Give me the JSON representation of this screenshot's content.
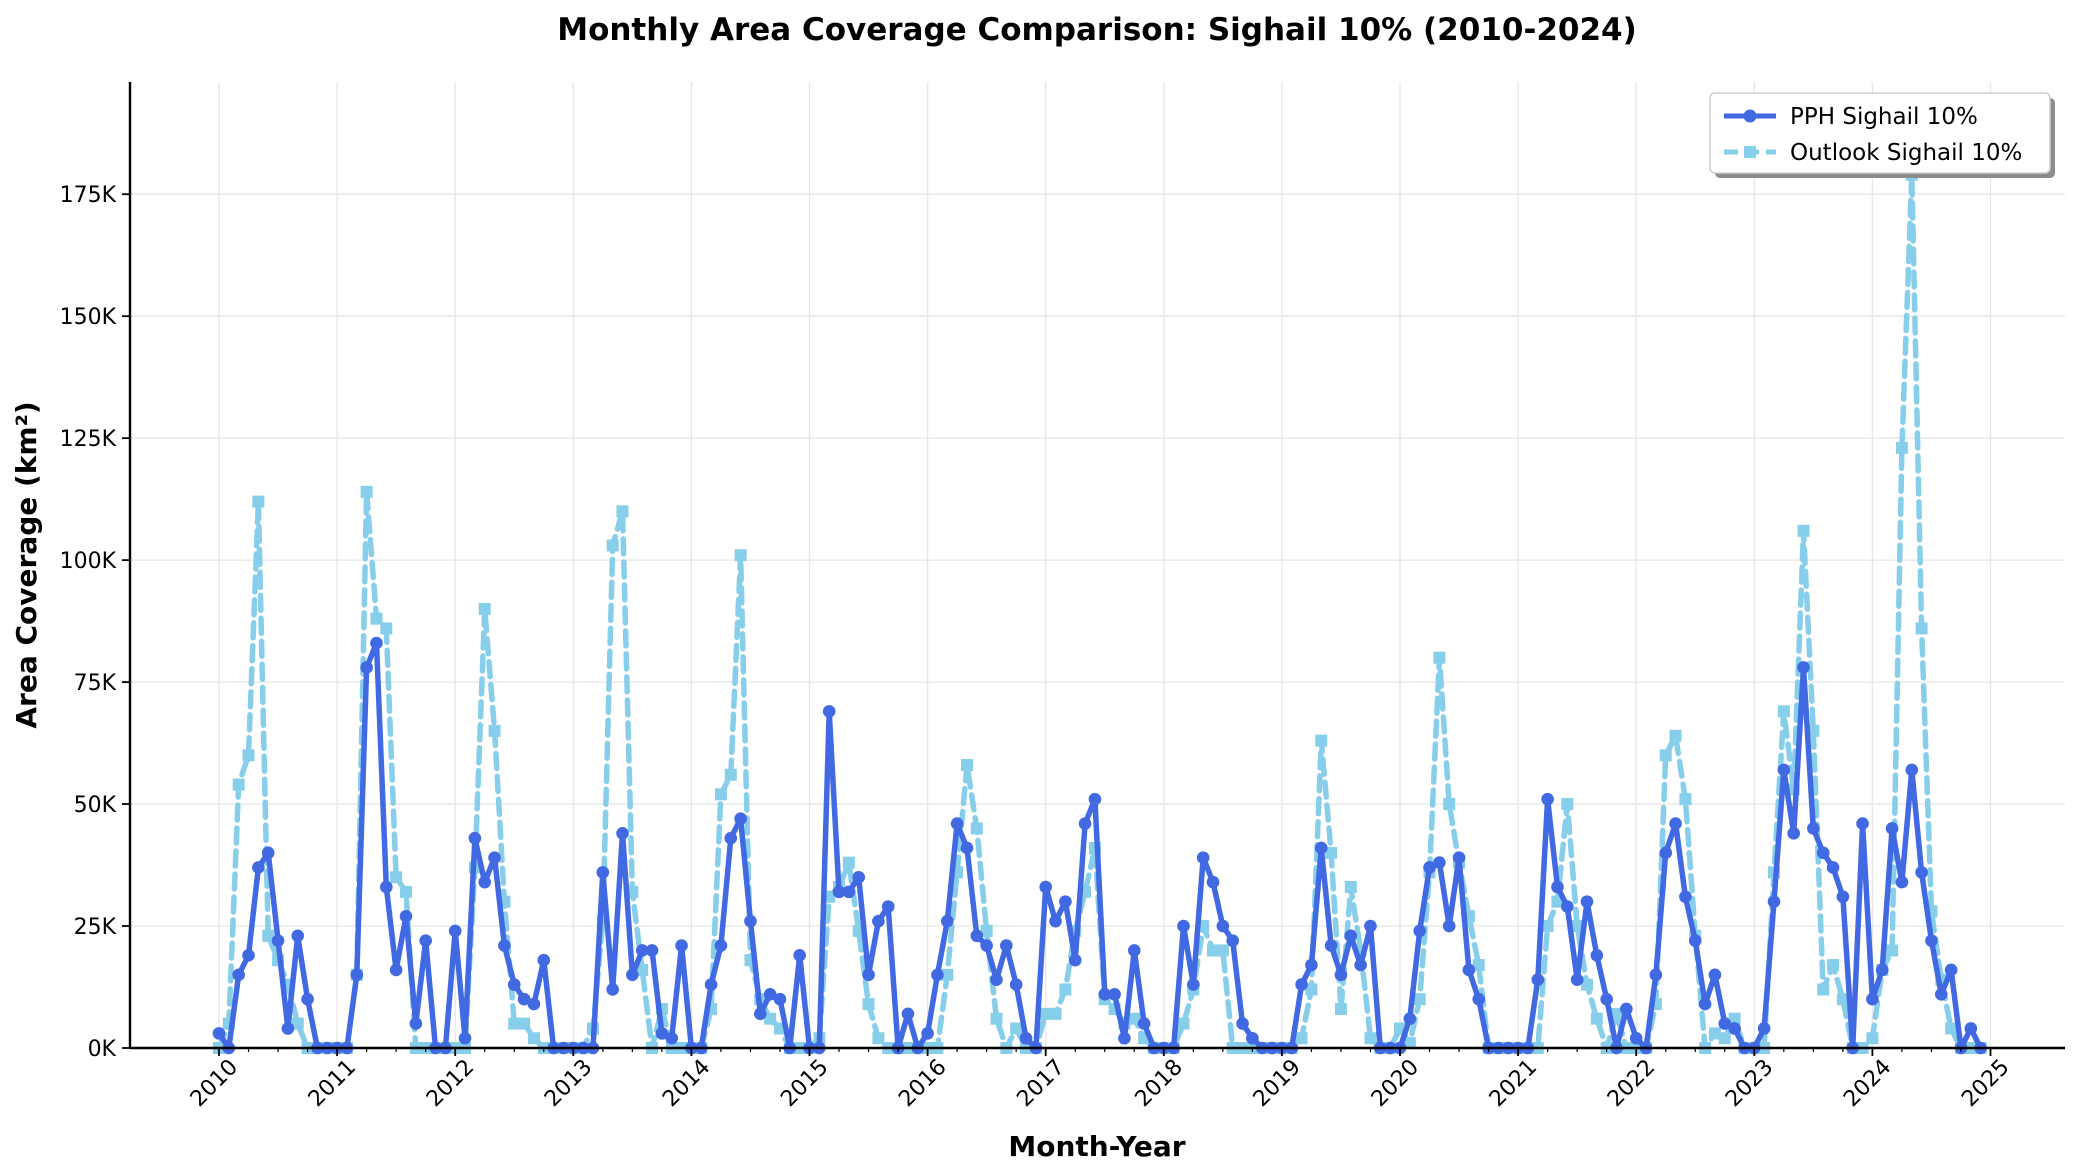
{
  "chart_data": {
    "type": "line",
    "title": "Monthly Area Coverage Comparison: Sighail 10% (2010-2024)",
    "xlabel": "Month-Year",
    "ylabel": "Area Coverage (km²)",
    "ylim": [
      0,
      198000
    ],
    "yticks": [
      0,
      25000,
      50000,
      75000,
      100000,
      125000,
      150000,
      175000
    ],
    "ytick_labels": [
      "0K",
      "25K",
      "50K",
      "75K",
      "100K",
      "125K",
      "150K",
      "175K"
    ],
    "xticks": [
      "2010-01",
      "2011-01",
      "2012-01",
      "2013-01",
      "2014-01",
      "2015-01",
      "2016-01",
      "2017-01",
      "2018-01",
      "2019-01",
      "2020-01",
      "2021-01",
      "2022-01",
      "2023-01",
      "2024-01",
      "2025-01"
    ],
    "xtick_labels": [
      "2010",
      "2011",
      "2012",
      "2013",
      "2014",
      "2015",
      "2016",
      "2017",
      "2018",
      "2019",
      "2020",
      "2021",
      "2022",
      "2023",
      "2024",
      "2025"
    ],
    "x_start": "2010-01",
    "x_end": "2024-12",
    "grid": true,
    "legend_position": "top-right",
    "series": [
      {
        "name": "PPH Sighail 10%",
        "color": "#4169e1",
        "style": "solid",
        "marker": "circle",
        "values": [
          3000,
          0,
          15000,
          19000,
          37000,
          40000,
          22000,
          4000,
          23000,
          10000,
          0,
          0,
          0,
          0,
          15000,
          78000,
          83000,
          33000,
          16000,
          27000,
          5000,
          22000,
          0,
          0,
          24000,
          2000,
          43000,
          34000,
          39000,
          21000,
          13000,
          10000,
          9000,
          18000,
          0,
          0,
          0,
          0,
          0,
          36000,
          12000,
          44000,
          15000,
          20000,
          20000,
          3000,
          2000,
          21000,
          0,
          0,
          13000,
          21000,
          43000,
          47000,
          26000,
          7000,
          11000,
          10000,
          0,
          19000,
          0,
          0,
          69000,
          32000,
          32000,
          35000,
          15000,
          26000,
          29000,
          0,
          7000,
          0,
          3000,
          15000,
          26000,
          46000,
          41000,
          23000,
          21000,
          14000,
          21000,
          13000,
          2000,
          0,
          33000,
          26000,
          30000,
          18000,
          46000,
          51000,
          11000,
          11000,
          2000,
          20000,
          5000,
          0,
          0,
          0,
          25000,
          13000,
          39000,
          34000,
          25000,
          22000,
          5000,
          2000,
          0,
          0,
          0,
          0,
          13000,
          17000,
          41000,
          21000,
          15000,
          23000,
          17000,
          25000,
          0,
          0,
          0,
          6000,
          24000,
          37000,
          38000,
          25000,
          39000,
          16000,
          10000,
          0,
          0,
          0,
          0,
          0,
          14000,
          51000,
          33000,
          29000,
          14000,
          30000,
          19000,
          10000,
          0,
          8000,
          2000,
          0,
          15000,
          40000,
          46000,
          31000,
          22000,
          9000,
          15000,
          5000,
          4000,
          0,
          0,
          4000,
          30000,
          57000,
          44000,
          78000,
          45000,
          40000,
          37000,
          31000,
          0,
          46000,
          10000,
          16000,
          45000,
          34000,
          57000,
          36000,
          22000,
          11000,
          16000,
          0,
          4000,
          0
        ]
      },
      {
        "name": "Outlook Sighail 10%",
        "color": "#87ceeb",
        "style": "dashed",
        "marker": "square",
        "values": [
          0,
          5000,
          54000,
          60000,
          112000,
          23000,
          18000,
          13000,
          5000,
          0,
          0,
          0,
          0,
          0,
          15000,
          114000,
          88000,
          86000,
          35000,
          32000,
          0,
          0,
          0,
          0,
          0,
          0,
          37000,
          90000,
          65000,
          30000,
          5000,
          5000,
          2000,
          0,
          0,
          0,
          0,
          0,
          4000,
          26000,
          103000,
          110000,
          32000,
          16000,
          0,
          8000,
          0,
          0,
          0,
          0,
          8000,
          52000,
          56000,
          101000,
          18000,
          10000,
          6000,
          4000,
          0,
          0,
          0,
          2000,
          31000,
          33000,
          38000,
          24000,
          9000,
          2000,
          0,
          0,
          0,
          0,
          0,
          0,
          15000,
          36000,
          58000,
          45000,
          24000,
          6000,
          0,
          4000,
          0,
          0,
          7000,
          7000,
          12000,
          24000,
          32000,
          41000,
          10000,
          8000,
          5000,
          6000,
          2000,
          0,
          0,
          0,
          5000,
          12000,
          25000,
          20000,
          20000,
          0,
          0,
          0,
          0,
          0,
          0,
          0,
          2000,
          12000,
          63000,
          40000,
          8000,
          33000,
          20000,
          2000,
          0,
          0,
          4000,
          1000,
          10000,
          36000,
          80000,
          50000,
          38000,
          27000,
          17000,
          0,
          0,
          0,
          0,
          0,
          0,
          25000,
          30000,
          50000,
          25000,
          13000,
          6000,
          0,
          7000,
          0,
          0,
          0,
          9000,
          60000,
          64000,
          51000,
          23000,
          0,
          3000,
          2000,
          6000,
          0,
          0,
          0,
          36000,
          69000,
          53000,
          106000,
          65000,
          12000,
          17000,
          10000,
          0,
          0,
          2000,
          16000,
          20000,
          123000,
          179000,
          86000,
          28000,
          14000,
          4000,
          0,
          0,
          0
        ]
      }
    ]
  }
}
